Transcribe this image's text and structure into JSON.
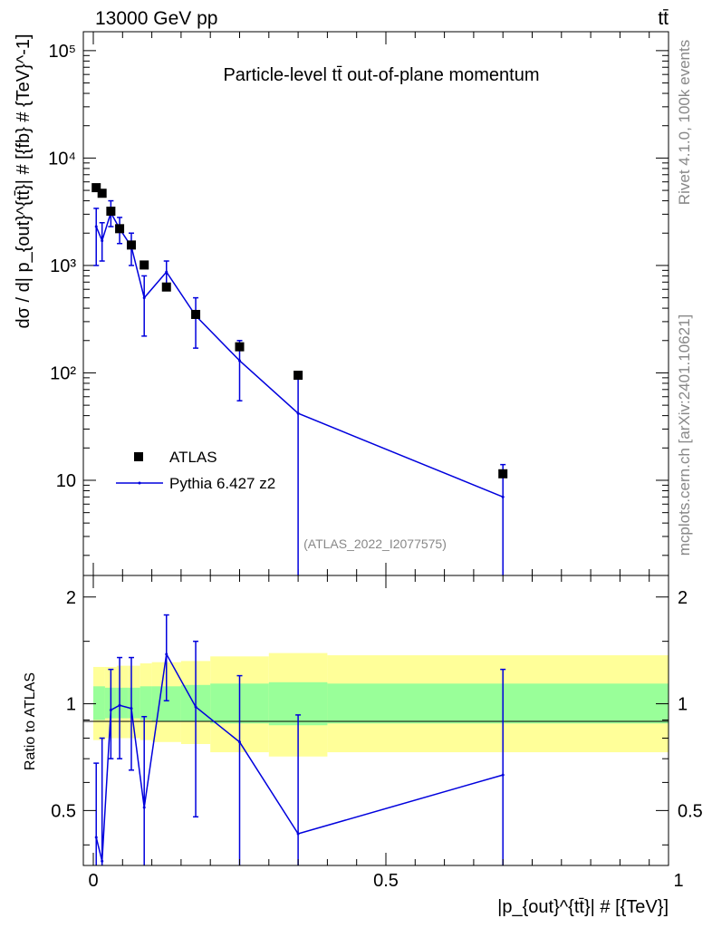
{
  "header": {
    "left": "13000 GeV pp",
    "right": "tt̄"
  },
  "title": "Particle-level tt̄ out-of-plane momentum",
  "watermark": "(ATLAS_2022_I2077575)",
  "side_text": {
    "top": "Rivet 4.1.0,  100k events",
    "bottom": "mcplots.cern.ch [arXiv:2401.10621]"
  },
  "legend": {
    "data": "ATLAS",
    "mc": "Pythia 6.427 z2"
  },
  "colors": {
    "data": "#000000",
    "mc": "#0000dd",
    "band_inner": "#99ff99",
    "band_outer": "#ffff99"
  },
  "chart_data": [
    {
      "type": "scatter",
      "title": "Particle-level tt̄ out-of-plane momentum",
      "ylabel": "dσ / d| p_{out}^{tt̄}| # [{fb} # {TeV}^-1]",
      "xlim": [
        0,
        1
      ],
      "ylim": [
        1.3,
        150000
      ],
      "yscale": "log",
      "y_tick_labels": [
        "10",
        "10²",
        "10³",
        "10⁴",
        "10⁵"
      ],
      "series": [
        {
          "name": "ATLAS",
          "x": [
            0.005,
            0.015,
            0.03,
            0.045,
            0.065,
            0.087,
            0.125,
            0.175,
            0.25,
            0.35,
            0.7
          ],
          "xerr": [
            0.005,
            0.005,
            0.01,
            0.005,
            0.015,
            0.0075,
            0.025,
            0.025,
            0.05,
            0.05,
            0.3
          ],
          "y": [
            5300,
            4700,
            3200,
            2200,
            1550,
            1010,
            630,
            350,
            175,
            95,
            11.5
          ],
          "ylow": [
            5300,
            4700,
            3200,
            2200,
            1550,
            1010,
            630,
            350,
            175,
            95,
            11.5
          ],
          "yhigh": [
            5300,
            4700,
            3200,
            2200,
            1550,
            1010,
            630,
            350,
            175,
            95,
            11.5
          ]
        },
        {
          "name": "Pythia 6.427 z2",
          "x": [
            0.005,
            0.015,
            0.03,
            0.045,
            0.065,
            0.087,
            0.125,
            0.175,
            0.25,
            0.35,
            0.7
          ],
          "y": [
            2300,
            1700,
            3100,
            2200,
            1500,
            500,
            870,
            340,
            130,
            42,
            7
          ],
          "ylow": [
            1000,
            1100,
            2300,
            1600,
            1000,
            220,
            640,
            170,
            55,
            0.5,
            0.5
          ],
          "yhigh": [
            3400,
            2500,
            4000,
            2800,
            2000,
            800,
            1100,
            500,
            200,
            95,
            14
          ]
        }
      ]
    },
    {
      "type": "line",
      "ylabel": "Ratio to ATLAS",
      "xlabel": "|p_{out}^{tt̄}| # [{TeV}]",
      "xlim": [
        0,
        1
      ],
      "ylim": [
        0.35,
        2.3
      ],
      "yscale": "log",
      "x_tick_labels": [
        "0",
        "0.5",
        "1"
      ],
      "y_tick_labels": [
        "0.5",
        "1",
        "2"
      ],
      "band_inner": {
        "edges": [
          0,
          0.02,
          0.04,
          0.06,
          0.08,
          0.1,
          0.15,
          0.2,
          0.3,
          0.4,
          1.0
        ],
        "low": [
          0.9,
          0.91,
          0.91,
          0.91,
          0.9,
          0.89,
          0.89,
          0.88,
          0.87,
          0.88
        ],
        "high": [
          1.12,
          1.11,
          1.11,
          1.11,
          1.12,
          1.12,
          1.13,
          1.14,
          1.15,
          1.14
        ]
      },
      "band_outer": {
        "edges": [
          0,
          0.02,
          0.04,
          0.06,
          0.08,
          0.1,
          0.15,
          0.2,
          0.3,
          0.4,
          1.0
        ],
        "low": [
          0.79,
          0.8,
          0.8,
          0.8,
          0.79,
          0.78,
          0.77,
          0.73,
          0.71,
          0.73
        ],
        "high": [
          1.27,
          1.27,
          1.28,
          1.28,
          1.3,
          1.31,
          1.32,
          1.36,
          1.39,
          1.37
        ]
      },
      "series": [
        {
          "name": "Pythia 6.427 z2 / ATLAS",
          "x": [
            0.005,
            0.015,
            0.03,
            0.045,
            0.065,
            0.087,
            0.125,
            0.175,
            0.25,
            0.35,
            0.7
          ],
          "y": [
            0.42,
            0.36,
            0.96,
            0.99,
            0.97,
            0.51,
            1.38,
            0.98,
            0.78,
            0.43,
            0.63
          ],
          "ylow": [
            0.3,
            0.3,
            0.7,
            0.7,
            0.65,
            0.35,
            1.02,
            0.48,
            0.3,
            0.3,
            0.3
          ],
          "yhigh": [
            0.68,
            0.8,
            1.25,
            1.35,
            1.35,
            0.92,
            1.78,
            1.5,
            1.2,
            0.93,
            1.25
          ]
        }
      ]
    }
  ]
}
